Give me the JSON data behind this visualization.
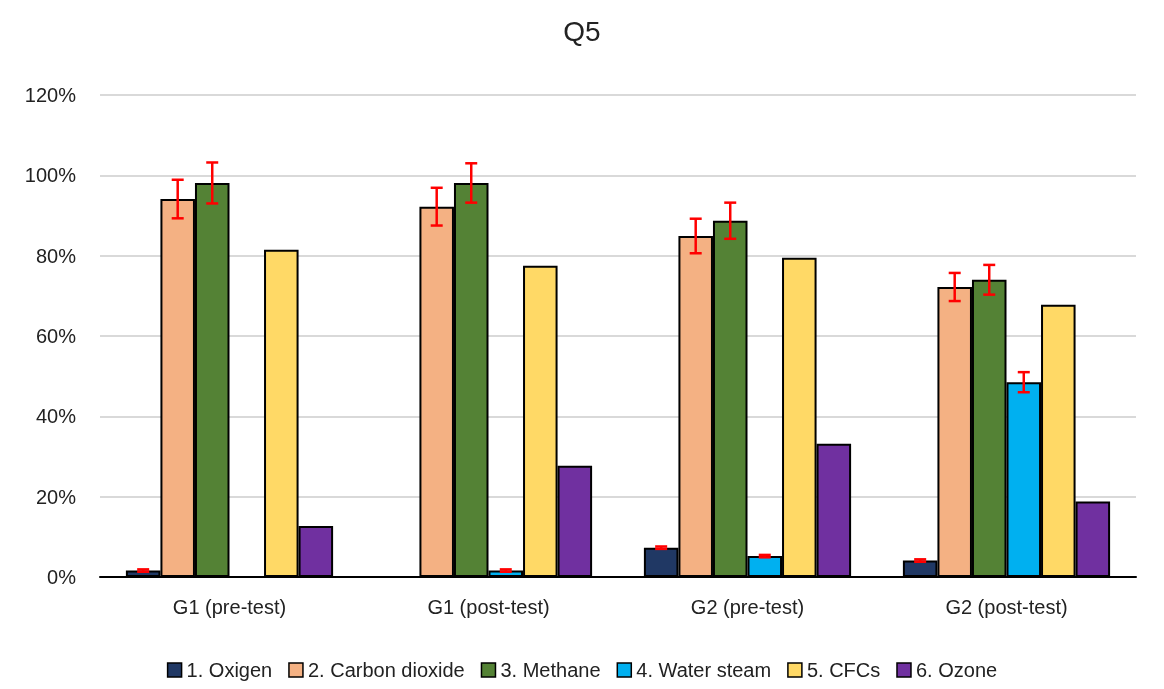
{
  "chart_data": {
    "type": "bar",
    "title": "Q5",
    "categories": [
      "G1 (pre-test)",
      "G1 (post-test)",
      "G2 (pre-test)",
      "G2 (post-test)"
    ],
    "series": [
      {
        "name": "1. Oxigen",
        "color": "#203864",
        "values": [
          1.6,
          null,
          7.3,
          4.1
        ],
        "errors": [
          0.3,
          null,
          0.3,
          0.3
        ]
      },
      {
        "name": "2. Carbon dioxide",
        "color": "#f4b183",
        "values": [
          94.1,
          92.2,
          84.9,
          72.2
        ],
        "errors": [
          4.8,
          4.7,
          4.3,
          3.5
        ]
      },
      {
        "name": "3. Methane",
        "color": "#548235",
        "values": [
          98.1,
          98.1,
          88.7,
          74.0
        ],
        "errors": [
          5.1,
          4.9,
          4.5,
          3.7
        ]
      },
      {
        "name": "4. Water steam",
        "color": "#00b0f0",
        "values": [
          null,
          1.6,
          5.2,
          48.5
        ],
        "errors": [
          null,
          0.3,
          0.3,
          2.5
        ]
      },
      {
        "name": "5. CFCs",
        "color": "#ffd966",
        "values": [
          81.5,
          77.5,
          79.5,
          67.8
        ]
      },
      {
        "name": "6. Ozone",
        "color": "#7030a0",
        "values": [
          12.7,
          27.7,
          33.2,
          18.8
        ]
      }
    ],
    "ylim": [
      0,
      120
    ],
    "yticks": [
      {
        "value": 0,
        "label": "0%"
      },
      {
        "value": 20,
        "label": "20%"
      },
      {
        "value": 40,
        "label": "40%"
      },
      {
        "value": 60,
        "label": "60%"
      },
      {
        "value": 80,
        "label": "80%"
      },
      {
        "value": 100,
        "label": "100%"
      },
      {
        "value": 120,
        "label": "120%"
      }
    ],
    "grid": "y",
    "legend": "bottom"
  }
}
